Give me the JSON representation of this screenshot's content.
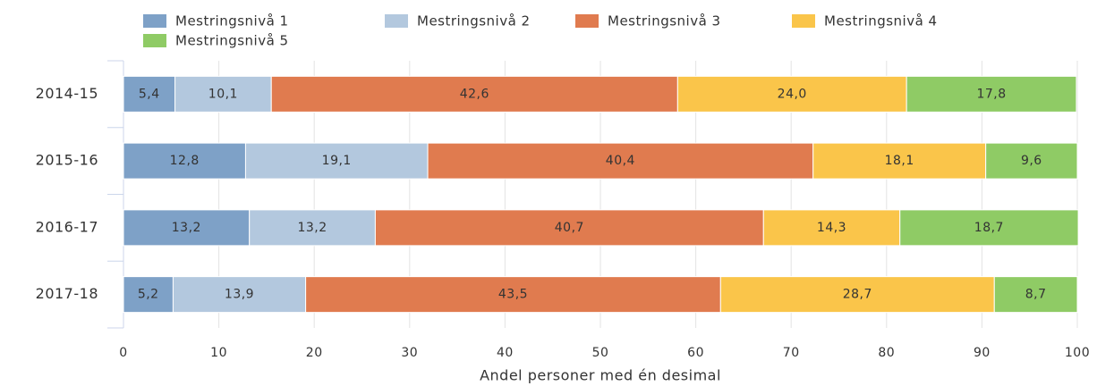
{
  "chart_data": {
    "type": "stacked_bar_horizontal",
    "x_label": "Andel personer med én desimal",
    "categories": [
      "2014-15",
      "2015-16",
      "2016-17",
      "2017-18"
    ],
    "series": [
      {
        "name": "Mestringsnivå 1",
        "color": "#7ea1c7",
        "values": [
          5.4,
          12.8,
          13.2,
          5.2
        ],
        "value_labels": [
          "5,4",
          "12,8",
          "13,2",
          "5,2"
        ]
      },
      {
        "name": "Mestringsnivå 2",
        "color": "#b3c8de",
        "values": [
          10.1,
          19.1,
          13.2,
          13.9
        ],
        "value_labels": [
          "10,1",
          "19,1",
          "13,2",
          "13,9"
        ]
      },
      {
        "name": "Mestringsnivå 3",
        "color": "#e07b4f",
        "values": [
          42.6,
          40.4,
          40.7,
          43.5
        ],
        "value_labels": [
          "42,6",
          "40,4",
          "40,7",
          "43,5"
        ]
      },
      {
        "name": "Mestringsnivå 4",
        "color": "#fac54a",
        "values": [
          24.0,
          18.1,
          14.3,
          28.7
        ],
        "value_labels": [
          "24,0",
          "18,1",
          "14,3",
          "28,7"
        ]
      },
      {
        "name": "Mestringsnivå 5",
        "color": "#8fcb65",
        "values": [
          17.8,
          9.6,
          18.7,
          8.7
        ],
        "value_labels": [
          "17,8",
          "9,6",
          "18,7",
          "8,7"
        ]
      }
    ],
    "xlim": [
      0,
      100
    ],
    "xticks": [
      0,
      10,
      20,
      30,
      40,
      50,
      60,
      70,
      80,
      90,
      100
    ],
    "grid": true,
    "legend": "top"
  }
}
